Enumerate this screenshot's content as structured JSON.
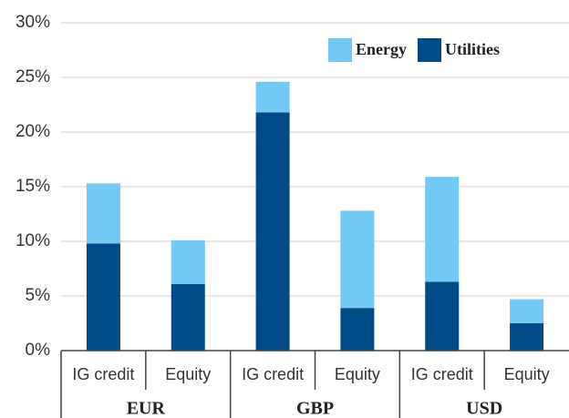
{
  "chart_data": {
    "type": "stacked_bar",
    "categories": [
      "IG credit",
      "Equity",
      "IG credit",
      "Equity",
      "IG credit",
      "Equity"
    ],
    "groups": [
      "EUR",
      "GBP",
      "USD"
    ],
    "series": [
      {
        "name": "Energy",
        "color": "#72c9f4",
        "values": [
          5.5,
          4.0,
          2.8,
          8.9,
          9.6,
          2.2
        ]
      },
      {
        "name": "Utilities",
        "color": "#004b87",
        "values": [
          9.8,
          6.1,
          21.8,
          3.9,
          6.3,
          2.5
        ]
      }
    ],
    "ylim": [
      0,
      30
    ],
    "yticks": [
      {
        "value": 0,
        "label": "0%"
      },
      {
        "value": 5,
        "label": "5%"
      },
      {
        "value": 10,
        "label": "10%"
      },
      {
        "value": 15,
        "label": "15%"
      },
      {
        "value": 20,
        "label": "20%"
      },
      {
        "value": 25,
        "label": "25%"
      },
      {
        "value": 30,
        "label": "30%"
      }
    ],
    "grid": true
  }
}
